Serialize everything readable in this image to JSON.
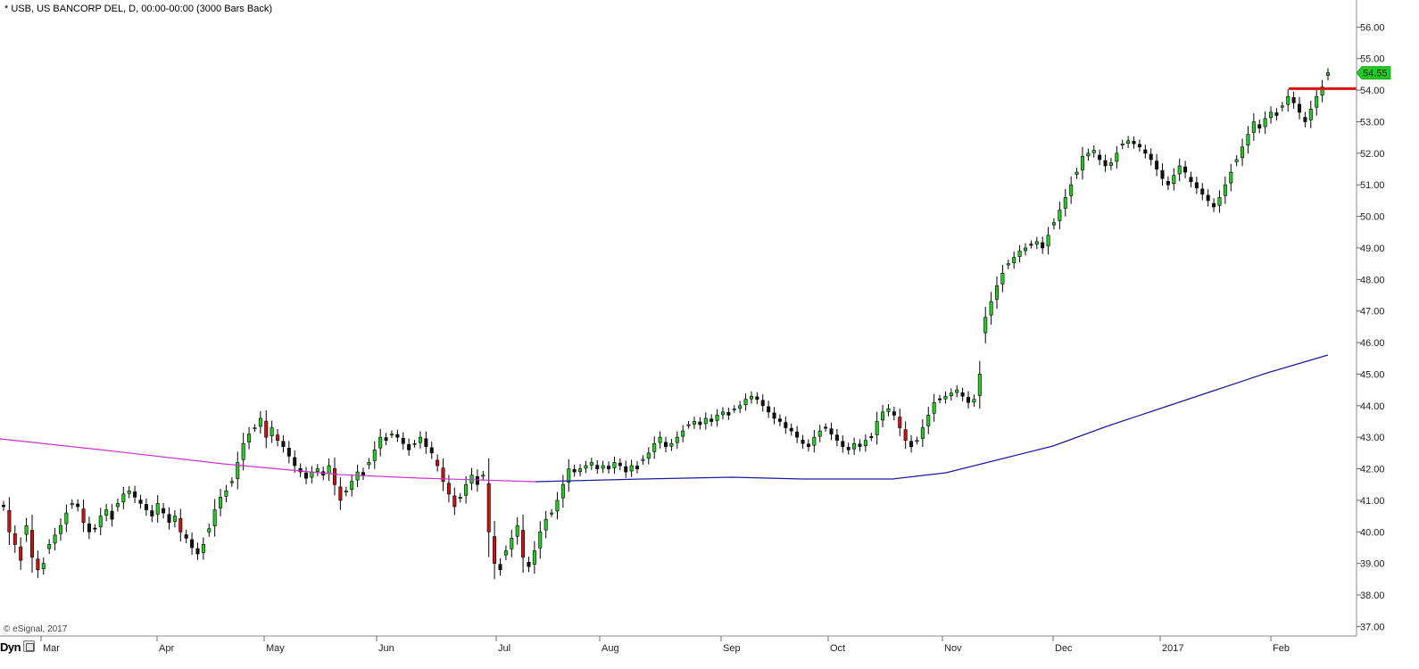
{
  "header": {
    "title": "* USB, US BANCORP DEL, D, 00:00-00:00 (3000 Bars Back)",
    "copyright": "© eSignal, 2017",
    "mode_label": "Dyn"
  },
  "colors": {
    "up": "#22cc22",
    "down": "#cc1111",
    "neutral": "#111111",
    "ma_above": "#cc33cc",
    "ma_below": "#1a1aa0",
    "price_marker": "#dd1111",
    "last_badge": "#22cc22"
  },
  "chart_data": {
    "type": "candlestick",
    "title": "* USB, US BANCORP DEL, D, 00:00-00:00 (3000 Bars Back)",
    "ylim": [
      37.0,
      56.0
    ],
    "yticks": [
      "37.00",
      "38.00",
      "39.00",
      "40.00",
      "41.00",
      "42.00",
      "43.00",
      "44.00",
      "45.00",
      "46.00",
      "47.00",
      "48.00",
      "49.00",
      "50.00",
      "51.00",
      "52.00",
      "53.00",
      "54.00",
      "55.00",
      "56.00"
    ],
    "xticks": [
      "Mar",
      "Apr",
      "May",
      "Jun",
      "Jul",
      "Aug",
      "Sep",
      "Oct",
      "Nov",
      "Dec",
      "2017",
      "Feb"
    ],
    "last_price": "54.55",
    "last_price_value": 54.55,
    "resistance_level": 54.05,
    "closes": [
      40.8,
      40.0,
      39.6,
      39.1,
      40.2,
      39.2,
      38.8,
      39.0,
      39.6,
      39.9,
      40.2,
      40.6,
      40.9,
      40.8,
      40.3,
      40.0,
      40.1,
      40.5,
      40.7,
      40.4,
      40.9,
      41.2,
      41.3,
      41.1,
      40.9,
      40.7,
      40.5,
      40.9,
      40.6,
      40.3,
      40.5,
      40.0,
      39.8,
      39.5,
      39.3,
      39.6,
      40.1,
      40.7,
      41.1,
      41.3,
      41.6,
      42.2,
      42.8,
      43.1,
      43.3,
      43.6,
      43.0,
      43.3,
      42.9,
      42.7,
      42.4,
      42.1,
      41.9,
      41.7,
      41.9,
      42.0,
      41.8,
      42.1,
      41.5,
      41.0,
      41.3,
      41.6,
      41.9,
      41.8,
      42.2,
      42.6,
      43.0,
      42.9,
      43.1,
      43.0,
      42.8,
      42.6,
      42.8,
      43.0,
      42.7,
      42.5,
      42.1,
      41.6,
      41.2,
      40.8,
      41.1,
      41.5,
      41.8,
      41.5,
      41.8,
      40.0,
      39.0,
      38.8,
      39.4,
      39.8,
      40.2,
      39.2,
      38.9,
      39.4,
      40.0,
      40.4,
      40.6,
      41.0,
      41.5,
      42.0,
      41.9,
      42.0,
      42.1,
      42.2,
      42.0,
      42.1,
      42.0,
      42.2,
      42.1,
      41.9,
      42.1,
      42.0,
      42.3,
      42.5,
      42.8,
      43.0,
      42.7,
      42.8,
      43.0,
      43.2,
      43.4,
      43.5,
      43.4,
      43.6,
      43.5,
      43.7,
      43.8,
      43.7,
      43.9,
      44.0,
      44.2,
      44.3,
      44.2,
      44.0,
      43.8,
      43.6,
      43.5,
      43.3,
      43.2,
      43.0,
      42.8,
      42.7,
      43.0,
      43.2,
      43.3,
      43.1,
      42.9,
      42.7,
      42.6,
      42.8,
      42.7,
      42.9,
      43.0,
      43.5,
      43.8,
      43.9,
      43.7,
      43.3,
      42.9,
      42.7,
      42.9,
      43.3,
      43.7,
      44.1,
      44.2,
      44.3,
      44.4,
      44.5,
      44.3,
      44.1,
      44.2,
      45.0,
      46.8,
      47.3,
      47.8,
      48.2,
      48.5,
      48.7,
      48.9,
      49.0,
      49.1,
      49.2,
      49.0,
      49.4,
      49.8,
      50.2,
      50.6,
      51.0,
      51.4,
      51.9,
      52.0,
      52.1,
      51.8,
      51.6,
      51.7,
      52.0,
      52.3,
      52.4,
      52.3,
      52.2,
      52.0,
      51.8,
      51.5,
      51.2,
      51.0,
      51.3,
      51.6,
      51.4,
      51.1,
      50.9,
      50.7,
      50.5,
      50.3,
      50.6,
      51.0,
      51.4,
      51.8,
      52.2,
      52.6,
      53.0,
      52.8,
      53.1,
      53.3,
      53.2,
      53.5,
      53.8,
      53.6,
      53.3,
      53.0,
      53.4,
      53.8,
      54.1,
      54.55
    ]
  }
}
